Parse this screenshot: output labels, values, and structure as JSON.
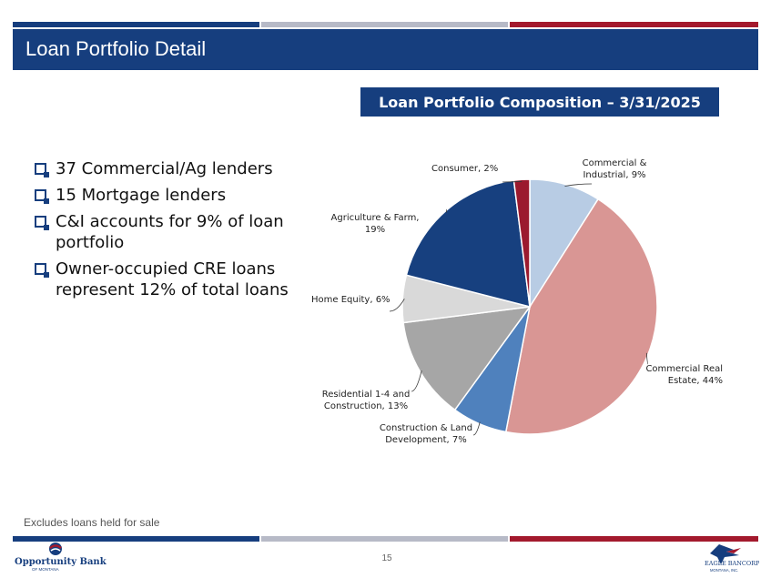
{
  "slide": {
    "title": "Loan Portfolio Detail",
    "page_number": "15",
    "footnote": "Excludes loans held for sale"
  },
  "bullets": [
    "37 Commercial/Ag lenders",
    "15 Mortgage lenders",
    "C&I accounts for 9% of loan portfolio",
    "Owner-occupied CRE loans represent 12% of total loans"
  ],
  "logos": {
    "left": {
      "name": "Opportunity Bank",
      "sub": "OF MONTANA"
    },
    "right": {
      "name": "EAGLE BANCORP",
      "sub": "MONTANA, INC."
    }
  },
  "colors": {
    "navy": "#163e7e",
    "gray_stripe": "#b7bac7",
    "red_stripe": "#a3192d"
  },
  "chart_data": {
    "type": "pie",
    "title": "Loan Portfolio Composition – 3/31/2025",
    "slices": [
      {
        "label": "Commercial & Industrial, 9%",
        "value": 9,
        "color": "#b8cce4"
      },
      {
        "label": "Commercial Real Estate, 44%",
        "value": 44,
        "color": "#d99694"
      },
      {
        "label": "Construction & Land Development, 7%",
        "value": 7,
        "color": "#4f81bd"
      },
      {
        "label": "Residential 1-4 and Construction, 13%",
        "value": 13,
        "color": "#a6a6a6"
      },
      {
        "label": "Home Equity, 6%",
        "value": 6,
        "color": "#d9d9d9"
      },
      {
        "label": "Agriculture & Farm, 19%",
        "value": 19,
        "color": "#17407f"
      },
      {
        "label": "Consumer, 2%",
        "value": 2,
        "color": "#9b1a2e"
      }
    ]
  }
}
